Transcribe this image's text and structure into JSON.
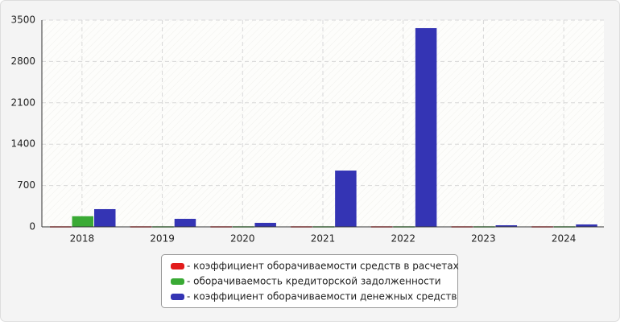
{
  "chart_data": {
    "type": "bar",
    "categories": [
      "2018",
      "2019",
      "2020",
      "2021",
      "2022",
      "2023",
      "2024"
    ],
    "series": [
      {
        "name": "- коэффициент оборачиваемости средств в расчетах",
        "color": "#e21b1b",
        "values": [
          10,
          10,
          10,
          10,
          10,
          10,
          10
        ]
      },
      {
        "name": "- оборачиваемость кредиторской задолженности",
        "color": "#3aaa35",
        "values": [
          180,
          10,
          10,
          10,
          10,
          10,
          10
        ]
      },
      {
        "name": "- коэффициент оборачиваемости денежных средств",
        "color": "#3434b4",
        "values": [
          300,
          136,
          68,
          953,
          3364,
          27,
          41
        ]
      }
    ],
    "ylim": [
      0,
      3500
    ],
    "yticks": [
      0,
      700,
      1400,
      2100,
      2800,
      3500
    ],
    "grid": true
  }
}
